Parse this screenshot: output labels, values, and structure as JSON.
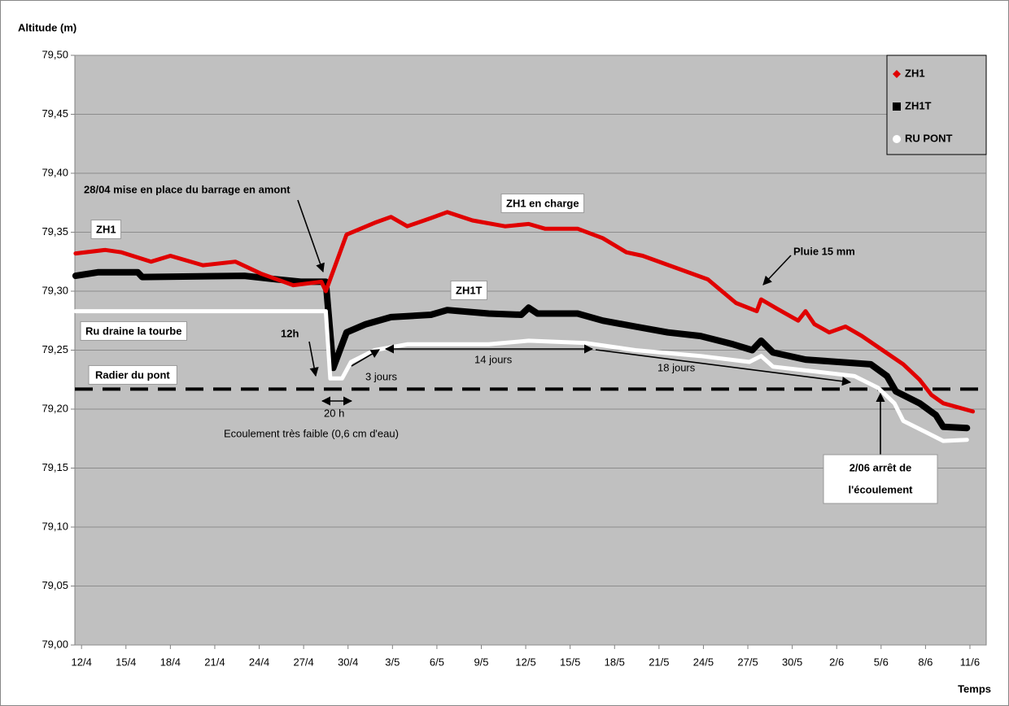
{
  "chart_data": {
    "type": "line",
    "y_axis_label": "Altitude  (m)",
    "x_axis_label": "Temps",
    "xlim": [
      -0.45,
      61.1
    ],
    "ylim": [
      79.0,
      79.5
    ],
    "xticks": [
      {
        "value": 0,
        "label": "12/4"
      },
      {
        "value": 3,
        "label": "15/4"
      },
      {
        "value": 6,
        "label": "18/4"
      },
      {
        "value": 9,
        "label": "21/4"
      },
      {
        "value": 12,
        "label": "24/4"
      },
      {
        "value": 15,
        "label": "27/4"
      },
      {
        "value": 18,
        "label": "30/4"
      },
      {
        "value": 21,
        "label": "3/5"
      },
      {
        "value": 24,
        "label": "6/5"
      },
      {
        "value": 27,
        "label": "9/5"
      },
      {
        "value": 30,
        "label": "12/5"
      },
      {
        "value": 33,
        "label": "15/5"
      },
      {
        "value": 36,
        "label": "18/5"
      },
      {
        "value": 39,
        "label": "21/5"
      },
      {
        "value": 42,
        "label": "24/5"
      },
      {
        "value": 45,
        "label": "27/5"
      },
      {
        "value": 48,
        "label": "30/5"
      },
      {
        "value": 51,
        "label": "2/6"
      },
      {
        "value": 54,
        "label": "5/6"
      },
      {
        "value": 57,
        "label": "8/6"
      },
      {
        "value": 60,
        "label": "11/6"
      }
    ],
    "yticks": [
      {
        "value": 79.0,
        "label": "79,00"
      },
      {
        "value": 79.05,
        "label": "79,05"
      },
      {
        "value": 79.1,
        "label": "79,10"
      },
      {
        "value": 79.15,
        "label": "79,15"
      },
      {
        "value": 79.2,
        "label": "79,20"
      },
      {
        "value": 79.25,
        "label": "79,25"
      },
      {
        "value": 79.3,
        "label": "79,30"
      },
      {
        "value": 79.35,
        "label": "79,35"
      },
      {
        "value": 79.4,
        "label": "79,40"
      },
      {
        "value": 79.45,
        "label": "79,45"
      },
      {
        "value": 79.5,
        "label": "79,50"
      }
    ],
    "grid": true,
    "legend": "upper right",
    "reference_line": {
      "value": 79.217,
      "label": "Radier du pont"
    },
    "series": [
      {
        "name": "ZH1",
        "color": "#e00000",
        "x": [
          -0.4,
          1.6,
          2.7,
          4.7,
          6.0,
          8.2,
          10.4,
          12.1,
          14.3,
          16.2,
          16.5,
          17.9,
          19.8,
          20.9,
          22.0,
          23.6,
          24.7,
          26.4,
          28.6,
          30.2,
          31.3,
          33.5,
          35.2,
          36.8,
          37.9,
          40.1,
          42.3,
          44.2,
          45.6,
          45.9,
          47.0,
          48.4,
          48.9,
          49.5,
          50.5,
          51.6,
          52.7,
          54.1,
          55.5,
          56.6,
          57.4,
          58.2,
          60.2
        ],
        "values": [
          79.332,
          79.335,
          79.333,
          79.325,
          79.33,
          79.322,
          79.325,
          79.315,
          79.305,
          79.308,
          79.3,
          79.348,
          79.358,
          79.363,
          79.355,
          79.362,
          79.367,
          79.36,
          79.355,
          79.357,
          79.353,
          79.353,
          79.345,
          79.333,
          79.33,
          79.32,
          79.31,
          79.29,
          79.283,
          79.293,
          79.285,
          79.275,
          79.283,
          79.272,
          79.265,
          79.27,
          79.262,
          79.25,
          79.238,
          79.225,
          79.212,
          79.205,
          79.198
        ]
      },
      {
        "name": "ZH1T",
        "color": "#000000",
        "x": [
          -0.4,
          1.1,
          3.8,
          4.1,
          11.0,
          13.2,
          14.8,
          16.5,
          17.0,
          17.9,
          19.2,
          20.9,
          23.6,
          24.7,
          27.5,
          29.7,
          30.2,
          30.8,
          33.5,
          35.2,
          37.4,
          39.6,
          41.8,
          44.0,
          45.3,
          45.9,
          46.7,
          48.9,
          51.1,
          53.3,
          54.4,
          55.0,
          56.6,
          57.7,
          58.2,
          59.8
        ],
        "values": [
          79.313,
          79.316,
          79.316,
          79.312,
          79.313,
          79.31,
          79.308,
          79.308,
          79.235,
          79.265,
          79.272,
          79.278,
          79.28,
          79.284,
          79.281,
          79.28,
          79.286,
          79.281,
          79.281,
          79.275,
          79.27,
          79.265,
          79.262,
          79.255,
          79.25,
          79.258,
          79.248,
          79.242,
          79.24,
          79.238,
          79.228,
          79.215,
          79.205,
          79.195,
          79.185,
          79.184
        ]
      },
      {
        "name": "RU PONT",
        "color": "#ffffff",
        "x": [
          -0.4,
          16.5,
          16.8,
          17.6,
          18.2,
          19.8,
          22.0,
          27.5,
          30.2,
          34.1,
          37.4,
          41.8,
          45.1,
          45.9,
          46.7,
          49.5,
          52.2,
          53.8,
          54.9,
          55.5,
          57.1,
          58.2,
          59.8
        ],
        "values": [
          79.283,
          79.283,
          79.226,
          79.226,
          79.24,
          79.25,
          79.255,
          79.255,
          79.258,
          79.256,
          79.25,
          79.245,
          79.24,
          79.245,
          79.236,
          79.232,
          79.228,
          79.218,
          79.205,
          79.19,
          79.18,
          79.173,
          79.174
        ]
      }
    ],
    "annotations": [
      {
        "text": "ZH1"
      },
      {
        "text": "28/04 mise en place du barrage en amont"
      },
      {
        "text": "ZH1 en charge"
      },
      {
        "text": "Pluie 15 mm"
      },
      {
        "text": "ZH1T"
      },
      {
        "text": "Ru draine la tourbe"
      },
      {
        "text": "12h"
      },
      {
        "text": "3 jours"
      },
      {
        "text": "14 jours"
      },
      {
        "text": "18 jours"
      },
      {
        "text": "20 h"
      },
      {
        "text": "Ecoulement très faible (0,6 cm d'eau)"
      },
      {
        "text": "2/06  arrêt de"
      },
      {
        "text": "l'écoulement"
      }
    ]
  }
}
